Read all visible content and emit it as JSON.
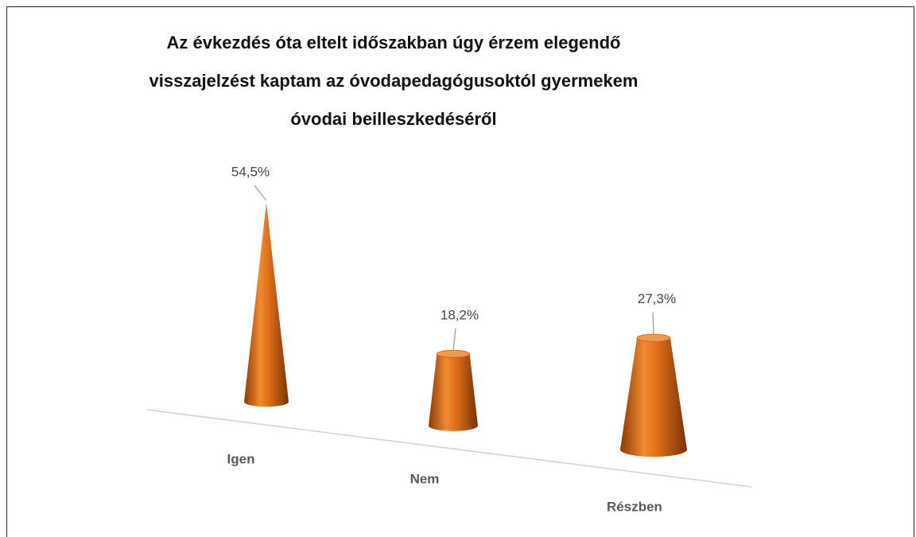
{
  "chart_data": {
    "type": "cone",
    "title": "Az évkezdés óta eltelt időszakban úgy érzem elegendő\nvisszajelzést kaptam az óvodapedagógusoktól gyermekem\nóvodai beilleszkedéséről",
    "categories": [
      "Igen",
      "Nem",
      "Részben"
    ],
    "values": [
      54.5,
      18.2,
      27.3
    ],
    "value_labels": [
      "54,5%",
      "18,2%",
      "27,3%"
    ],
    "color": "#e0701a"
  }
}
